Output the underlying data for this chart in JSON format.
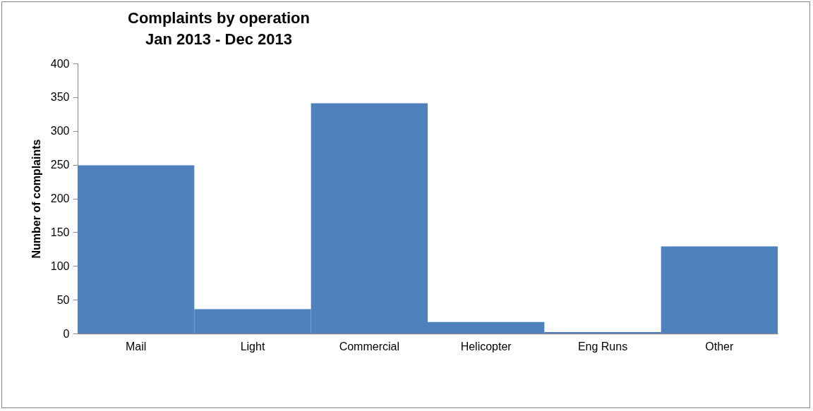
{
  "chart_data": {
    "type": "bar",
    "title": [
      "Complaints by operation",
      "Jan 2013 - Dec 2013"
    ],
    "ylabel": "Number of complaints",
    "categories": [
      "Mail",
      "Light",
      "Commercial",
      "Helicopter",
      "Eng Runs",
      "Other"
    ],
    "values": [
      249,
      36,
      341,
      17,
      2,
      129
    ],
    "color": "#4f81bd",
    "ylim": [
      0,
      400
    ],
    "yticks": [
      0,
      50,
      100,
      150,
      200,
      250,
      300,
      350,
      400
    ],
    "grid": false
  }
}
